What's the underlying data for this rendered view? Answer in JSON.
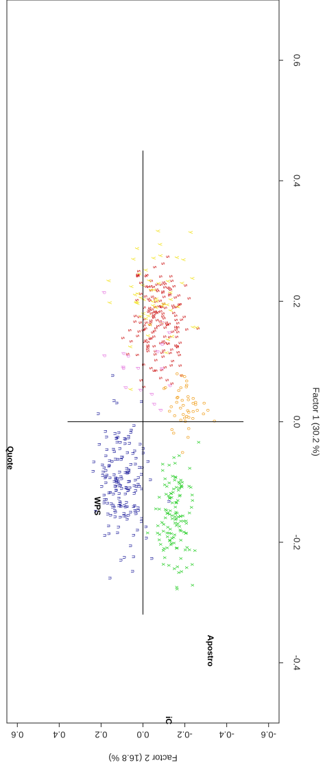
{
  "chart_data": {
    "type": "scatter",
    "orientation": "rotated-90-cw",
    "xlabel": "Factor 1 (30.2 %)",
    "ylabel": "Factor 2 (16.8 %)",
    "xlim": [
      -0.5,
      0.7
    ],
    "ylim": [
      -0.65,
      0.65
    ],
    "xticks": [
      -0.4,
      -0.2,
      0.0,
      0.2,
      0.4,
      0.6
    ],
    "yticks": [
      0.6,
      0.4,
      0.2,
      0.0,
      -0.2,
      -0.4,
      -0.6
    ],
    "xtick_labels": [
      "-0.4",
      "-0.2",
      "0.0",
      "0.2",
      "0.4",
      "0.6"
    ],
    "ytick_labels": [
      "0.6",
      "0.4",
      "0.2",
      "0.0",
      "-0.2",
      "-0.4",
      "-0.6"
    ],
    "crosshair": {
      "x_range": [
        -0.32,
        0.45
      ],
      "y_range": [
        -0.48,
        0.36
      ]
    },
    "variable_labels": [
      {
        "text": "Quote",
        "x": -0.06,
        "y": 0.66
      },
      {
        "text": "WPS",
        "x": -0.14,
        "y": 0.22
      },
      {
        "text": "Apostro",
        "x": -0.38,
        "y": -0.32
      },
      {
        "text": "iC",
        "x": -0.55,
        "y": -0.12
      }
    ],
    "series": [
      {
        "name": "s",
        "marker": "s",
        "color": "#cc1111",
        "n": 170,
        "center": [
          0.17,
          -0.08
        ],
        "spread": [
          0.07,
          0.1
        ]
      },
      {
        "name": "y",
        "marker": "y",
        "color": "#f2e21c",
        "n": 55,
        "center": [
          0.2,
          -0.05
        ],
        "spread": [
          0.06,
          0.13
        ]
      },
      {
        "name": "p",
        "marker": "p",
        "color": "#e67ee0",
        "n": 18,
        "center": [
          0.1,
          0.0
        ],
        "spread": [
          0.08,
          0.15
        ]
      },
      {
        "name": "o",
        "marker": "o",
        "color": "#f0a020",
        "n": 45,
        "center": [
          0.03,
          -0.2
        ],
        "spread": [
          0.04,
          0.06
        ]
      },
      {
        "name": "x",
        "marker": "x",
        "color": "#22cc22",
        "n": 130,
        "center": [
          -0.16,
          -0.16
        ],
        "spread": [
          0.08,
          0.06
        ]
      },
      {
        "name": "n",
        "marker": "n",
        "color": "#1a1a99",
        "n": 170,
        "center": [
          -0.1,
          0.1
        ],
        "spread": [
          0.08,
          0.08
        ]
      }
    ]
  }
}
